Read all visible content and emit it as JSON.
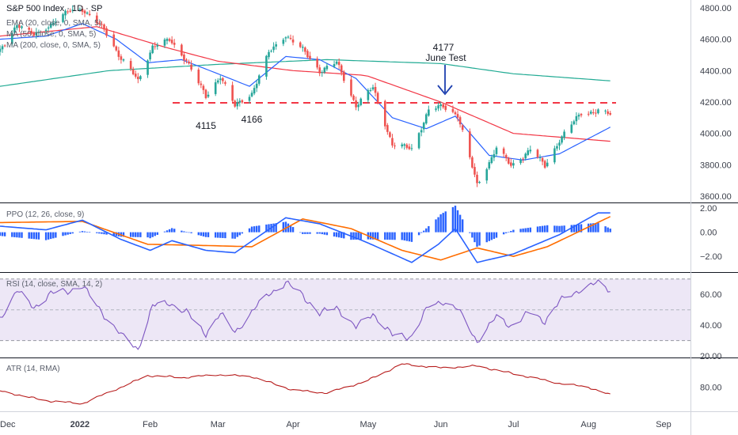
{
  "chart_data": {
    "type": "candlestick",
    "title": "S&P 500 Index · 1D · SP",
    "colors": {
      "up": "#26a69a",
      "down": "#ef5350",
      "ema20": "#2962ff",
      "sma50": "#f23645",
      "sma200": "#22ab94",
      "support": "#f23645",
      "ppo": "#2962ff",
      "ppo_signal": "#ff6d00",
      "ppo_hist": "#2962ff",
      "rsi": "#7e57c2",
      "rsi_band": "#ede7f6",
      "atr": "#b71c1c",
      "arrow": "#1e40af"
    },
    "main": {
      "legend": [
        "EMA (20, close, 0, SMA, 5)",
        "MA (50, close, 0, SMA, 5)",
        "MA (200, close, 0, SMA, 5)"
      ],
      "y_ticks": [
        "4800.00",
        "4600.00",
        "4400.00",
        "4200.00",
        "4000.00",
        "3800.00",
        "3600.00"
      ],
      "ylim": [
        3560,
        4850
      ],
      "support_level": 4195,
      "annotations": [
        {
          "text": "4115",
          "date": "2022-02-24",
          "value": 4115
        },
        {
          "text": "4166",
          "date": "2022-03-08",
          "value": 4166
        },
        {
          "text": "4177",
          "date": "2022-06-02",
          "value": 4177
        },
        {
          "text": "June Test",
          "date": "2022-06-02",
          "value": 4177
        }
      ],
      "ohlc_anchors_close": [
        [
          "2021-12-01",
          4520
        ],
        [
          "2021-12-08",
          4700
        ],
        [
          "2021-12-15",
          4620
        ],
        [
          "2021-12-22",
          4700
        ],
        [
          "2021-12-30",
          4780
        ],
        [
          "2022-01-04",
          4795
        ],
        [
          "2022-01-13",
          4660
        ],
        [
          "2022-01-20",
          4480
        ],
        [
          "2022-01-24",
          4400
        ],
        [
          "2022-01-27",
          4330
        ],
        [
          "2022-02-02",
          4560
        ],
        [
          "2022-02-09",
          4590
        ],
        [
          "2022-02-16",
          4470
        ],
        [
          "2022-02-24",
          4230
        ],
        [
          "2022-03-02",
          4370
        ],
        [
          "2022-03-08",
          4170
        ],
        [
          "2022-03-15",
          4260
        ],
        [
          "2022-03-22",
          4510
        ],
        [
          "2022-03-29",
          4630
        ],
        [
          "2022-04-05",
          4530
        ],
        [
          "2022-04-12",
          4400
        ],
        [
          "2022-04-19",
          4450
        ],
        [
          "2022-04-27",
          4180
        ],
        [
          "2022-05-04",
          4290
        ],
        [
          "2022-05-12",
          3930
        ],
        [
          "2022-05-20",
          3900
        ],
        [
          "2022-05-27",
          4150
        ],
        [
          "2022-06-02",
          4170
        ],
        [
          "2022-06-08",
          4120
        ],
        [
          "2022-06-16",
          3670
        ],
        [
          "2022-06-24",
          3910
        ],
        [
          "2022-06-30",
          3790
        ],
        [
          "2022-07-08",
          3900
        ],
        [
          "2022-07-14",
          3790
        ],
        [
          "2022-07-20",
          3960
        ],
        [
          "2022-07-29",
          4130
        ],
        [
          "2022-08-05",
          4145
        ],
        [
          "2022-08-09",
          4120
        ]
      ],
      "ema20_anchors": [
        [
          "2021-12-01",
          4600
        ],
        [
          "2021-12-20",
          4620
        ],
        [
          "2022-01-04",
          4700
        ],
        [
          "2022-01-18",
          4600
        ],
        [
          "2022-01-31",
          4450
        ],
        [
          "2022-02-14",
          4470
        ],
        [
          "2022-03-01",
          4380
        ],
        [
          "2022-03-14",
          4300
        ],
        [
          "2022-03-29",
          4490
        ],
        [
          "2022-04-12",
          4470
        ],
        [
          "2022-04-27",
          4350
        ],
        [
          "2022-05-12",
          4100
        ],
        [
          "2022-05-26",
          4030
        ],
        [
          "2022-06-07",
          4110
        ],
        [
          "2022-06-21",
          3860
        ],
        [
          "2022-07-05",
          3830
        ],
        [
          "2022-07-20",
          3870
        ],
        [
          "2022-08-10",
          4040
        ]
      ],
      "sma50_anchors": [
        [
          "2021-12-01",
          4620
        ],
        [
          "2022-01-10",
          4680
        ],
        [
          "2022-02-07",
          4550
        ],
        [
          "2022-03-01",
          4460
        ],
        [
          "2022-04-01",
          4400
        ],
        [
          "2022-05-01",
          4370
        ],
        [
          "2022-06-01",
          4200
        ],
        [
          "2022-07-01",
          4000
        ],
        [
          "2022-08-10",
          3950
        ]
      ],
      "sma200_anchors": [
        [
          "2021-12-01",
          4300
        ],
        [
          "2022-01-15",
          4400
        ],
        [
          "2022-03-01",
          4440
        ],
        [
          "2022-04-15",
          4470
        ],
        [
          "2022-06-01",
          4445
        ],
        [
          "2022-07-01",
          4380
        ],
        [
          "2022-08-10",
          4335
        ]
      ]
    },
    "ppo": {
      "legend": "PPO (12, 26, close, 9)",
      "y_ticks": [
        "2.00",
        "0.00",
        "−2.00"
      ],
      "ylim": [
        -3.3,
        2.4
      ],
      "line_anchors": [
        [
          "2021-12-01",
          0.5
        ],
        [
          "2021-12-20",
          0.2
        ],
        [
          "2022-01-04",
          1.0
        ],
        [
          "2022-01-20",
          -0.6
        ],
        [
          "2022-02-01",
          -1.5
        ],
        [
          "2022-02-10",
          -0.7
        ],
        [
          "2022-02-24",
          -1.5
        ],
        [
          "2022-03-08",
          -1.7
        ],
        [
          "2022-03-29",
          1.2
        ],
        [
          "2022-04-12",
          0.7
        ],
        [
          "2022-05-01",
          -0.8
        ],
        [
          "2022-05-20",
          -2.5
        ],
        [
          "2022-05-31",
          -1.0
        ],
        [
          "2022-06-07",
          0.3
        ],
        [
          "2022-06-16",
          -2.5
        ],
        [
          "2022-07-01",
          -1.8
        ],
        [
          "2022-07-20",
          -0.2
        ],
        [
          "2022-08-05",
          1.6
        ],
        [
          "2022-08-10",
          1.6
        ]
      ],
      "signal_anchors": [
        [
          "2021-12-01",
          0.8
        ],
        [
          "2022-01-04",
          0.9
        ],
        [
          "2022-01-31",
          -1.0
        ],
        [
          "2022-02-24",
          -1.1
        ],
        [
          "2022-03-15",
          -1.2
        ],
        [
          "2022-04-05",
          1.1
        ],
        [
          "2022-04-25",
          0.3
        ],
        [
          "2022-05-16",
          -1.5
        ],
        [
          "2022-06-01",
          -2.3
        ],
        [
          "2022-06-16",
          -1.3
        ],
        [
          "2022-07-01",
          -2.0
        ],
        [
          "2022-07-15",
          -1.2
        ],
        [
          "2022-08-10",
          1.3
        ]
      ]
    },
    "rsi": {
      "legend": "RSI (14, close, SMA, 14, 2)",
      "y_ticks": [
        "60.00",
        "40.00",
        "20.00"
      ],
      "ylim": [
        19,
        74
      ],
      "bands": {
        "upper": 70,
        "middle": 50,
        "lower": 30
      },
      "anchors": [
        [
          "2021-12-01",
          45
        ],
        [
          "2021-12-08",
          62
        ],
        [
          "2021-12-15",
          52
        ],
        [
          "2021-12-22",
          60
        ],
        [
          "2022-01-04",
          65
        ],
        [
          "2022-01-13",
          47
        ],
        [
          "2022-01-20",
          33
        ],
        [
          "2022-01-27",
          25
        ],
        [
          "2022-02-02",
          52
        ],
        [
          "2022-02-09",
          55
        ],
        [
          "2022-02-16",
          48
        ],
        [
          "2022-02-24",
          35
        ],
        [
          "2022-03-02",
          47
        ],
        [
          "2022-03-08",
          36
        ],
        [
          "2022-03-15",
          48
        ],
        [
          "2022-03-22",
          61
        ],
        [
          "2022-03-29",
          67
        ],
        [
          "2022-04-05",
          60
        ],
        [
          "2022-04-12",
          47
        ],
        [
          "2022-04-19",
          52
        ],
        [
          "2022-04-27",
          38
        ],
        [
          "2022-05-04",
          48
        ],
        [
          "2022-05-12",
          33
        ],
        [
          "2022-05-20",
          33
        ],
        [
          "2022-05-27",
          52
        ],
        [
          "2022-06-02",
          56
        ],
        [
          "2022-06-08",
          50
        ],
        [
          "2022-06-16",
          30
        ],
        [
          "2022-06-24",
          45
        ],
        [
          "2022-06-30",
          40
        ],
        [
          "2022-07-08",
          48
        ],
        [
          "2022-07-14",
          43
        ],
        [
          "2022-07-20",
          55
        ],
        [
          "2022-07-29",
          64
        ],
        [
          "2022-08-05",
          67
        ],
        [
          "2022-08-10",
          63
        ]
      ]
    },
    "atr": {
      "legend": "ATR (14, RMA)",
      "y_ticks": [
        "80.00"
      ],
      "ylim": [
        55,
        110
      ],
      "anchors": [
        [
          "2021-12-01",
          76
        ],
        [
          "2021-12-20",
          66
        ],
        [
          "2022-01-04",
          63
        ],
        [
          "2022-01-20",
          80
        ],
        [
          "2022-01-31",
          92
        ],
        [
          "2022-02-15",
          90
        ],
        [
          "2022-03-01",
          93
        ],
        [
          "2022-03-15",
          91
        ],
        [
          "2022-04-01",
          77
        ],
        [
          "2022-04-15",
          74
        ],
        [
          "2022-05-01",
          86
        ],
        [
          "2022-05-16",
          104
        ],
        [
          "2022-06-01",
          100
        ],
        [
          "2022-06-16",
          102
        ],
        [
          "2022-07-01",
          94
        ],
        [
          "2022-07-20",
          84
        ],
        [
          "2022-08-01",
          80
        ],
        [
          "2022-08-10",
          72
        ]
      ]
    },
    "x_ticks": [
      {
        "date": "2021-12-01",
        "label": "Dec"
      },
      {
        "date": "2022-01-03",
        "label": "2022"
      },
      {
        "date": "2022-02-01",
        "label": "Feb"
      },
      {
        "date": "2022-03-01",
        "label": "Mar"
      },
      {
        "date": "2022-04-01",
        "label": "Apr"
      },
      {
        "date": "2022-05-02",
        "label": "May"
      },
      {
        "date": "2022-06-01",
        "label": "Jun"
      },
      {
        "date": "2022-07-01",
        "label": "Jul"
      },
      {
        "date": "2022-08-01",
        "label": "Aug"
      },
      {
        "date": "2022-09-01",
        "label": "Sep"
      }
    ],
    "grid": false
  }
}
